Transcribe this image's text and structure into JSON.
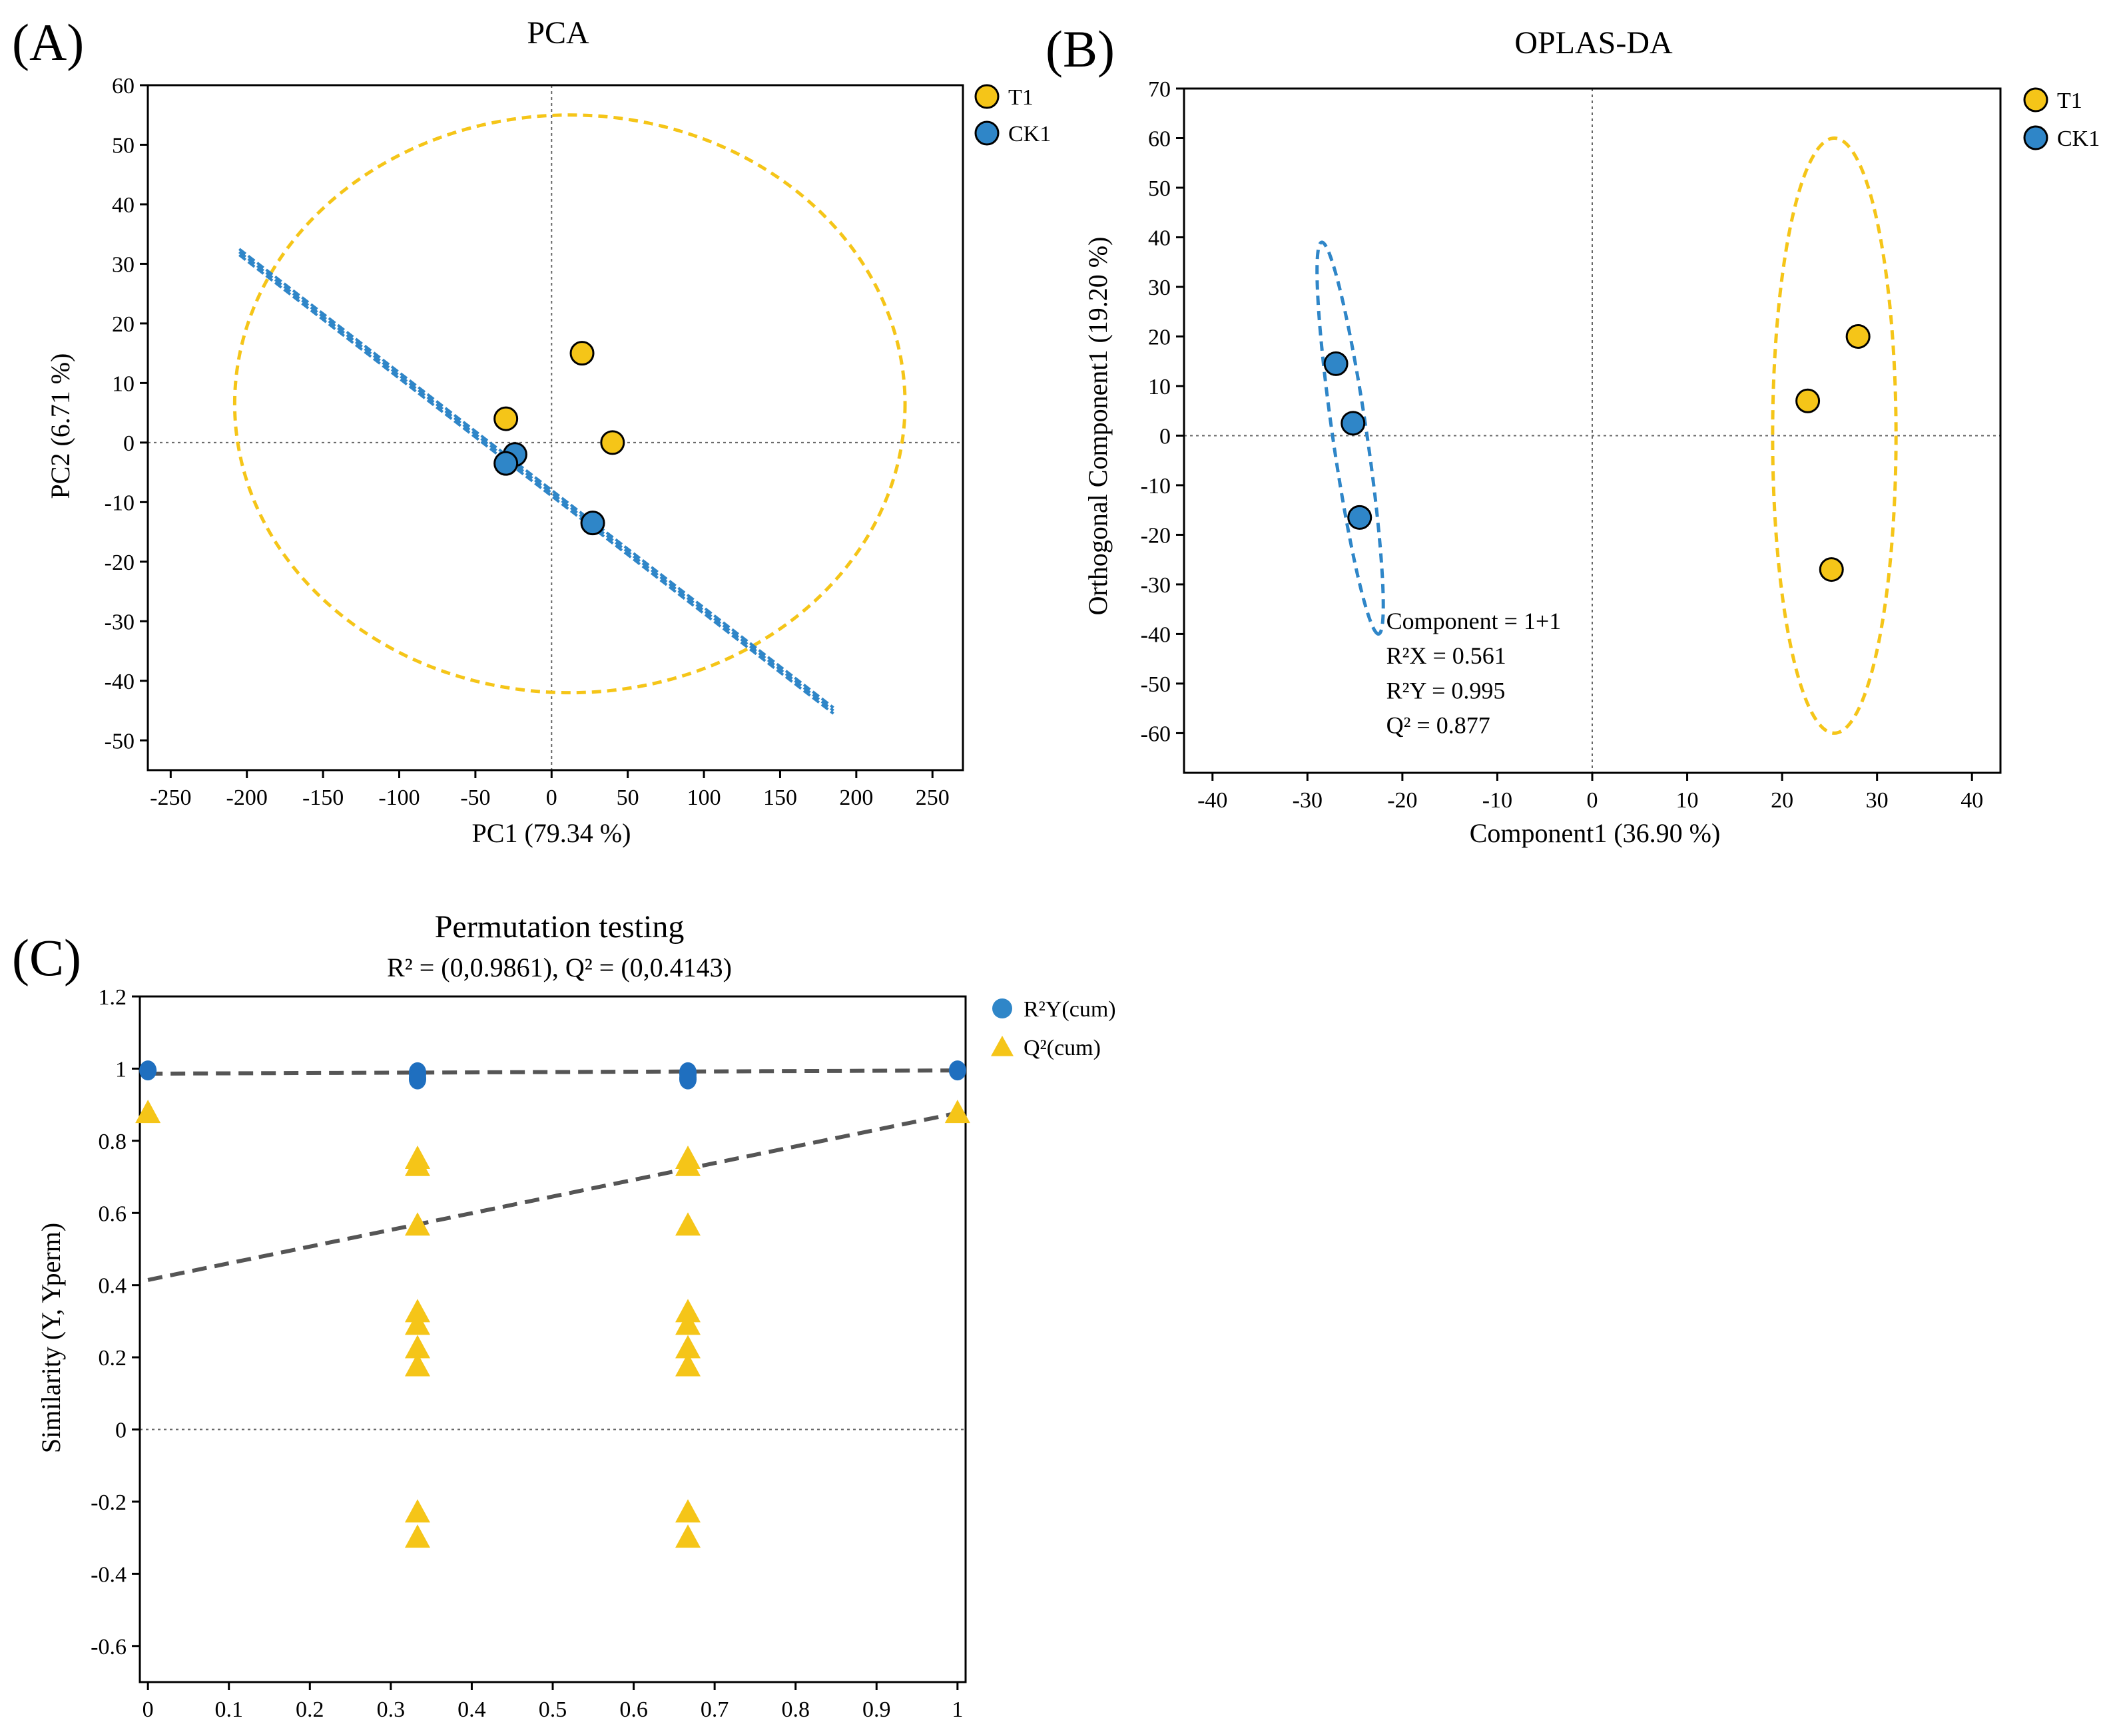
{
  "chart_data": [
    {
      "id": "A",
      "panel_label": "(A)",
      "type": "scatter",
      "title": "PCA",
      "xlabel": "PC1 (79.34 %)",
      "ylabel": "PC2 (6.71 %)",
      "xlim": [
        -265,
        270
      ],
      "ylim": [
        -55,
        60
      ],
      "xticks": [
        -250,
        -200,
        -150,
        -100,
        -50,
        0,
        50,
        100,
        150,
        200,
        250
      ],
      "yticks": [
        -50,
        -40,
        -30,
        -20,
        -10,
        0,
        10,
        20,
        30,
        40,
        50,
        60
      ],
      "legend_position": "right",
      "reference_lines": {
        "x": 0,
        "y": 0
      },
      "series": [
        {
          "name": "T1",
          "color": "#f5c518",
          "marker": "circle",
          "points": [
            [
              20,
              15
            ],
            [
              -30,
              4
            ],
            [
              40,
              0
            ]
          ]
        },
        {
          "name": "CK1",
          "color": "#2f86c8",
          "marker": "circle",
          "points": [
            [
              -24,
              -2
            ],
            [
              -30,
              -3.5
            ],
            [
              27,
              -13.5
            ]
          ]
        }
      ],
      "ellipses": [
        {
          "series": "T1",
          "color": "#f5c518",
          "center": [
            12,
            6.5
          ],
          "radii": [
            220,
            48.5
          ],
          "angle": 0
        }
      ],
      "line_segments": [
        {
          "series": "CK1",
          "color": "#2f86c8",
          "from": [
            -205,
            32
          ],
          "to": [
            185,
            -45
          ],
          "strands": 3
        }
      ]
    },
    {
      "id": "B",
      "panel_label": "(B)",
      "type": "scatter",
      "title": "OPLAS-DA",
      "xlabel": "Component1 (36.90 %)",
      "ylabel": "Orthogonal Component1 (19.20 %)",
      "xlim": [
        -43,
        43
      ],
      "ylim": [
        -68,
        70
      ],
      "xticks": [
        -40,
        -30,
        -20,
        -10,
        0,
        10,
        20,
        30,
        40
      ],
      "yticks": [
        -60,
        -50,
        -40,
        -30,
        -20,
        -10,
        0,
        10,
        20,
        30,
        40,
        50,
        60,
        70
      ],
      "legend_position": "right",
      "reference_lines": {
        "x": 0,
        "y": 0
      },
      "series": [
        {
          "name": "T1",
          "color": "#f5c518",
          "marker": "circle",
          "points": [
            [
              28,
              20
            ],
            [
              22.7,
              7
            ],
            [
              25.2,
              -27
            ]
          ]
        },
        {
          "name": "CK1",
          "color": "#2f86c8",
          "marker": "circle",
          "points": [
            [
              -27,
              14.5
            ],
            [
              -25.2,
              2.5
            ],
            [
              -24.5,
              -16.5
            ]
          ]
        }
      ],
      "ellipses": [
        {
          "series": "T1",
          "color": "#f5c518",
          "center": [
            25.5,
            0
          ],
          "radii": [
            6.5,
            60
          ],
          "angle": 0
        },
        {
          "series": "CK1",
          "color": "#2f86c8",
          "center": [
            -25.5,
            0
          ],
          "radii": [
            1.8,
            39.5
          ],
          "angle": 0,
          "tilt_to": [
            -22.5,
            -40
          ],
          "tilt_from": [
            -28.5,
            39
          ]
        }
      ],
      "annotations": [
        {
          "text": "Component = 1+1",
          "x": -21.7,
          "y": -39
        },
        {
          "text": "R²X = 0.561",
          "x": -21.7,
          "y": -46
        },
        {
          "text": "R²Y = 0.995",
          "x": -21.7,
          "y": -53
        },
        {
          "text": "Q² = 0.877",
          "x": -21.7,
          "y": -60
        }
      ]
    },
    {
      "id": "C",
      "panel_label": "(C)",
      "type": "scatter",
      "title": "Permutation testing",
      "subtitle": "R² = (0,0.9861), Q² = (0,0.4143)",
      "xlabel": "",
      "ylabel": "Similarity (Y, Yperm)",
      "xlim": [
        -0.01,
        1.01
      ],
      "ylim": [
        -0.7,
        1.2
      ],
      "xticks": [
        0,
        0.1,
        0.2,
        0.3,
        0.4,
        0.5,
        0.6,
        0.7,
        0.8,
        0.9,
        1
      ],
      "xtick_labels": [
        "0",
        "0.1",
        "0.2",
        "0.3",
        "0.4",
        "0.5",
        "0.6",
        "0.7",
        "0.8",
        "0.9",
        "1"
      ],
      "yticks": [
        -0.6,
        -0.4,
        -0.2,
        0,
        0.2,
        0.4,
        0.6,
        0.8,
        1,
        1.2
      ],
      "ytick_labels": [
        "-0.6",
        "-0.4",
        "-0.2",
        "0",
        "0.2",
        "0.4",
        "0.6",
        "0.8",
        "1",
        "1.2"
      ],
      "legend_position": "right",
      "reference_lines": {
        "y": 0
      },
      "series": [
        {
          "name": "R²Y(cum)",
          "color": "#2f86c8",
          "marker": "circle",
          "points": [
            [
              0,
              0.995
            ],
            [
              0.333,
              0.99
            ],
            [
              0.333,
              0.985
            ],
            [
              0.333,
              0.975
            ],
            [
              0.333,
              0.97
            ],
            [
              0.667,
              0.99
            ],
            [
              0.667,
              0.985
            ],
            [
              0.667,
              0.975
            ],
            [
              0.667,
              0.97
            ],
            [
              1,
              0.995
            ]
          ]
        },
        {
          "name": "Q²(cum)",
          "color": "#f5c518",
          "marker": "triangle",
          "points": [
            [
              0,
              0.877
            ],
            [
              0.333,
              0.75
            ],
            [
              0.333,
              0.73
            ],
            [
              0.333,
              0.565
            ],
            [
              0.333,
              0.325
            ],
            [
              0.333,
              0.29
            ],
            [
              0.333,
              0.225
            ],
            [
              0.333,
              0.175
            ],
            [
              0.333,
              -0.23
            ],
            [
              0.333,
              -0.3
            ],
            [
              0.667,
              0.75
            ],
            [
              0.667,
              0.73
            ],
            [
              0.667,
              0.565
            ],
            [
              0.667,
              0.325
            ],
            [
              0.667,
              0.29
            ],
            [
              0.667,
              0.225
            ],
            [
              0.667,
              0.175
            ],
            [
              0.667,
              -0.23
            ],
            [
              0.667,
              -0.3
            ],
            [
              1,
              0.877
            ]
          ]
        }
      ],
      "regression_lines": [
        {
          "name": "R2 line",
          "from": [
            0,
            0.9861
          ],
          "to": [
            1,
            0.995
          ]
        },
        {
          "name": "Q2 line",
          "from": [
            0,
            0.4143
          ],
          "to": [
            1,
            0.877
          ]
        }
      ]
    }
  ]
}
